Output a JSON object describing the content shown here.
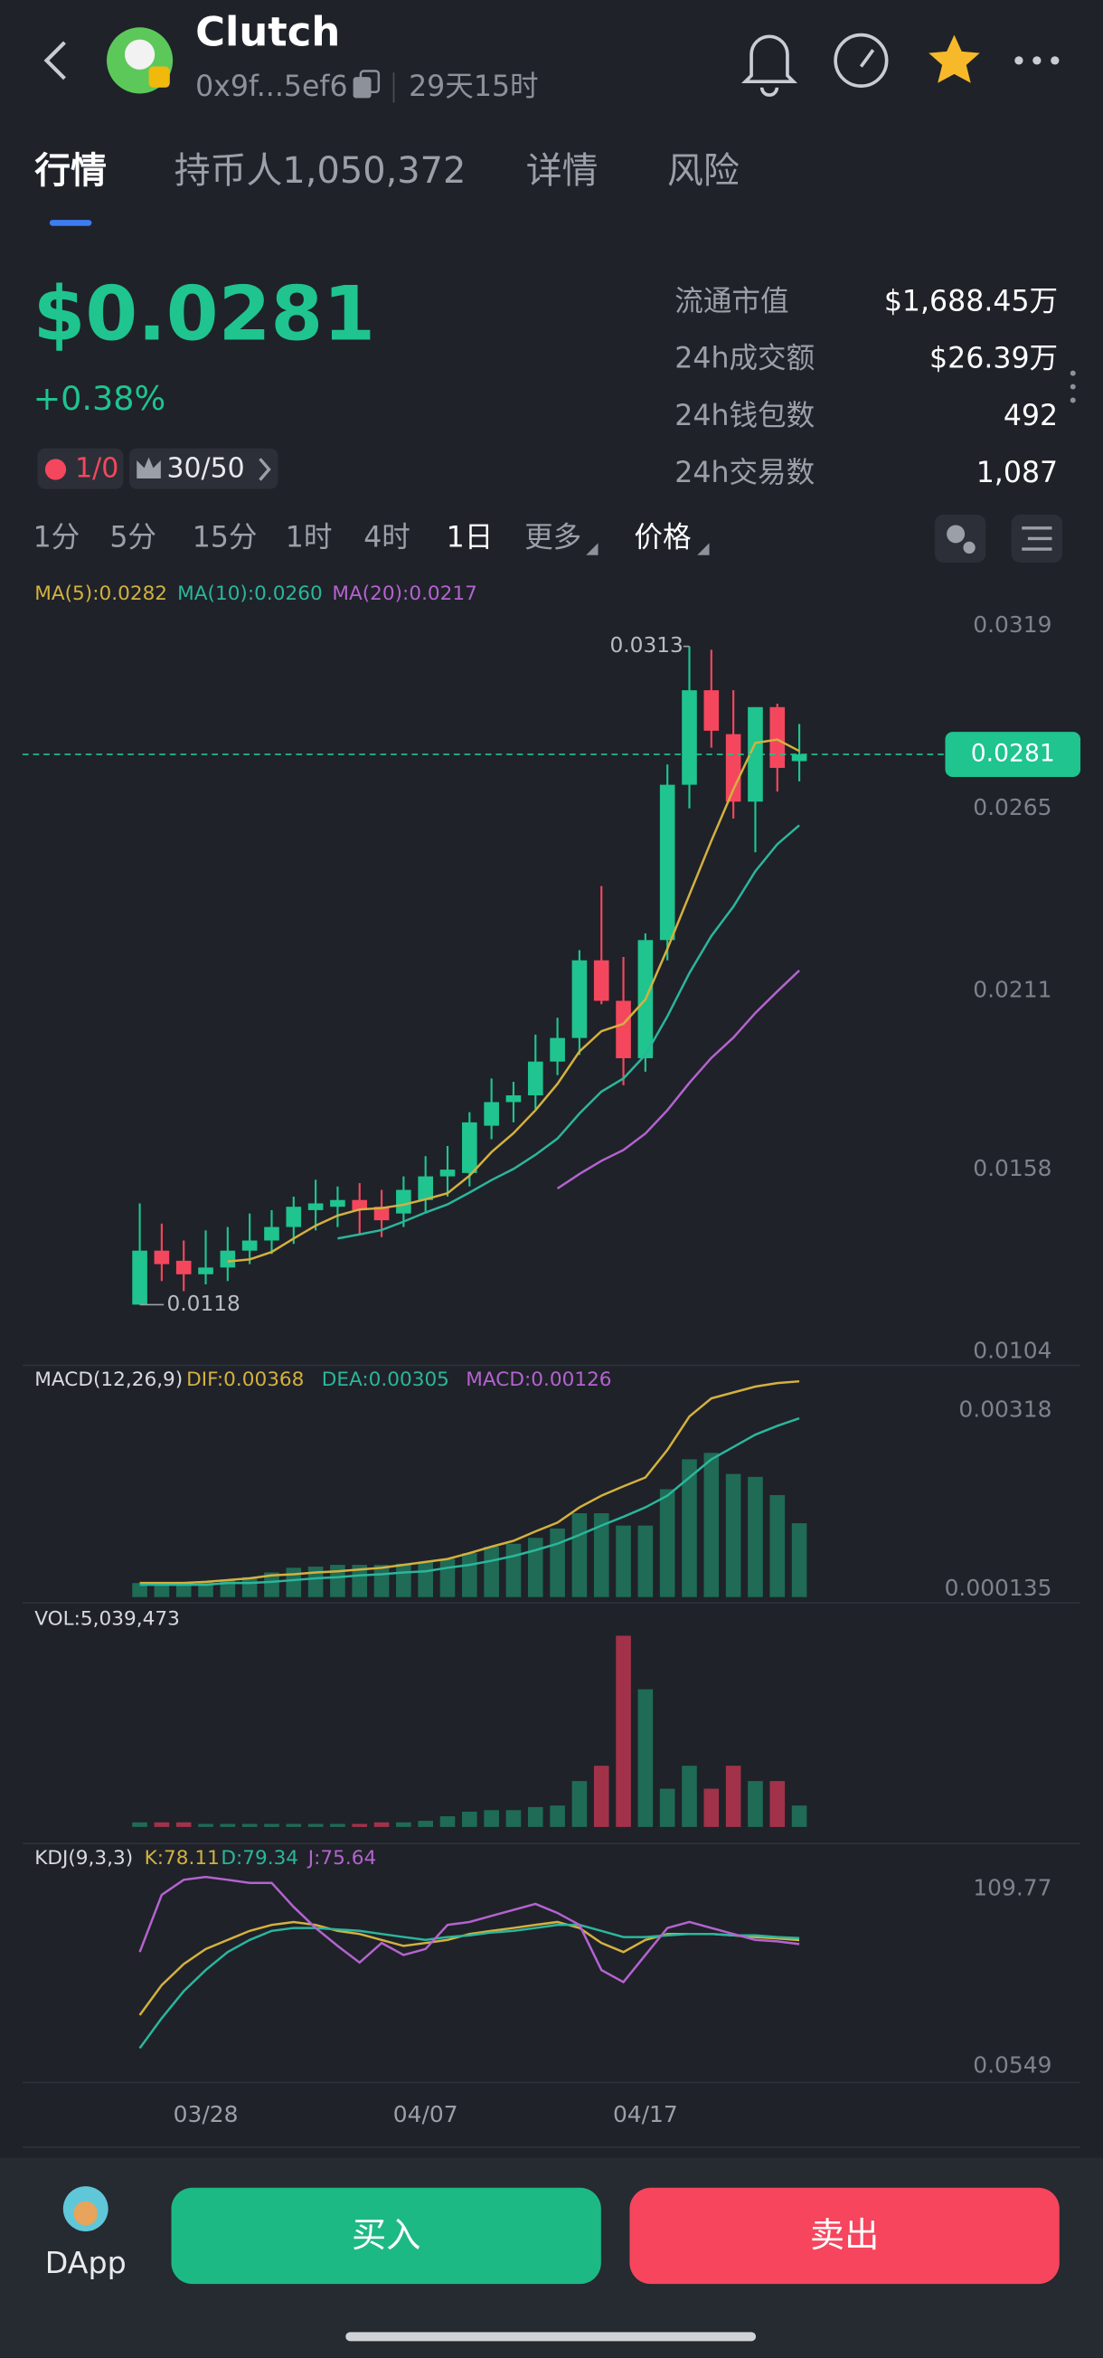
{
  "header": {
    "title": "Clutch",
    "address": "0x9f...5ef6",
    "age": "29天15时"
  },
  "tabs": [
    "行情",
    "持币人1,050,372",
    "详情",
    "风险"
  ],
  "price": {
    "value": "$0.0281",
    "change": "+0.38%"
  },
  "badges": [
    "1/0",
    "30/50"
  ],
  "stats": [
    {
      "label": "流通市值",
      "value": "$1,688.45万"
    },
    {
      "label": "24h成交额",
      "value": "$26.39万"
    },
    {
      "label": "24h钱包数",
      "value": "492"
    },
    {
      "label": "24h交易数",
      "value": "1,087"
    }
  ],
  "intervals": [
    "1分",
    "5分",
    "15分",
    "1时",
    "4时",
    "1日",
    "更多",
    "价格"
  ],
  "chart_data": [
    {
      "type": "candlestick",
      "categories": [
        null,
        null,
        null,
        "03/28",
        null,
        null,
        null,
        null,
        null,
        null,
        null,
        null,
        null,
        "04/07",
        null,
        null,
        null,
        null,
        null,
        null,
        null,
        null,
        null,
        "04/17",
        null,
        null,
        null,
        null,
        null,
        null,
        null
      ],
      "open": [
        0.0118,
        0.0134,
        0.0131,
        0.0127,
        0.0129,
        0.0134,
        0.0137,
        0.0141,
        0.0146,
        0.0147,
        0.0149,
        0.0147,
        0.0145,
        0.0149,
        0.0156,
        0.0157,
        0.0171,
        0.0178,
        0.018,
        0.019,
        0.0197,
        0.022,
        0.0208,
        0.0191,
        0.0226,
        0.0272,
        0.03,
        0.0287,
        0.0267,
        0.0295,
        0.0279
      ],
      "high": [
        0.0148,
        0.0142,
        0.0137,
        0.014,
        0.0141,
        0.0145,
        0.0146,
        0.015,
        0.0155,
        0.0153,
        0.0154,
        0.0152,
        0.0156,
        0.0162,
        0.0165,
        0.0175,
        0.0185,
        0.0184,
        0.0198,
        0.0203,
        0.0223,
        0.0242,
        0.0221,
        0.0228,
        0.0278,
        0.0313,
        0.0312,
        0.03,
        0.0294,
        0.0296,
        0.029
      ],
      "low": [
        0.0118,
        0.0125,
        0.0122,
        0.0124,
        0.0125,
        0.013,
        0.0133,
        0.0136,
        0.014,
        0.0141,
        0.0139,
        0.0138,
        0.0141,
        0.0145,
        0.015,
        0.0153,
        0.0167,
        0.0172,
        0.0176,
        0.0186,
        0.0192,
        0.0207,
        0.0183,
        0.0187,
        0.022,
        0.0265,
        0.0283,
        0.0262,
        0.0252,
        0.027,
        0.0273
      ],
      "close": [
        0.0134,
        0.013,
        0.0127,
        0.0129,
        0.0134,
        0.0137,
        0.0141,
        0.0147,
        0.0148,
        0.0149,
        0.0146,
        0.0143,
        0.0152,
        0.0156,
        0.0158,
        0.0172,
        0.0178,
        0.018,
        0.019,
        0.0197,
        0.022,
        0.0208,
        0.0191,
        0.0226,
        0.0272,
        0.03,
        0.0288,
        0.0267,
        0.0295,
        0.0277,
        0.0281
      ],
      "up_color": "#1fc48f",
      "down_color": "#f4475d",
      "ylim": [
        0.01,
        0.0324
      ],
      "yticks": [
        0.0319,
        0.0265,
        0.0211,
        0.0158,
        0.0104
      ],
      "series": [
        {
          "name": "MA(5):0.0282",
          "color": "#d4b13f",
          "values": [
            null,
            null,
            null,
            null,
            0.01308,
            0.01314,
            0.01336,
            0.01376,
            0.01414,
            0.01444,
            0.01462,
            0.01466,
            0.01476,
            0.01492,
            0.0151,
            0.01562,
            0.01632,
            0.01688,
            0.01756,
            0.01834,
            0.0193,
            0.0199,
            0.02012,
            0.02084,
            0.02234,
            0.02394,
            0.02554,
            0.02706,
            0.02844,
            0.02854,
            0.0282
          ]
        },
        {
          "name": "MA(10):0.0260",
          "color": "#2bb69c",
          "values": [
            null,
            null,
            null,
            null,
            null,
            null,
            null,
            null,
            null,
            0.01376,
            0.01388,
            0.01401,
            0.01426,
            0.01453,
            0.01477,
            0.01512,
            0.01549,
            0.01582,
            0.01624,
            0.01672,
            0.01746,
            0.01811,
            0.0185,
            0.0192,
            0.02034,
            0.02162,
            0.02272,
            0.02359,
            0.02464,
            0.02544,
            0.026
          ]
        },
        {
          "name": "MA(20):0.0217",
          "color": "#b463cf",
          "values": [
            null,
            null,
            null,
            null,
            null,
            null,
            null,
            null,
            null,
            null,
            null,
            null,
            null,
            null,
            null,
            null,
            null,
            null,
            null,
            0.01524,
            0.01567,
            0.01606,
            0.01638,
            0.01687,
            0.01756,
            0.01837,
            0.01911,
            0.01971,
            0.02044,
            0.02108,
            0.0217
          ]
        }
      ]
    },
    {
      "type": "macd",
      "title": "MACD(12,26,9)",
      "ylim": [
        -0.0001,
        0.0039
      ],
      "yticks": [
        0.00318,
        0.000135
      ],
      "series": [
        {
          "name": "DIF:0.00368",
          "color": "#d4b13f",
          "values": [
            0.00024,
            0.00024,
            0.00024,
            0.00026,
            0.00029,
            0.00032,
            0.00037,
            0.00039,
            0.00042,
            0.00044,
            0.00047,
            0.0005,
            0.00055,
            0.0006,
            0.00065,
            0.00075,
            0.00086,
            0.00096,
            0.00112,
            0.00127,
            0.00153,
            0.00173,
            0.00189,
            0.00204,
            0.00251,
            0.00308,
            0.00339,
            0.00349,
            0.00359,
            0.00365,
            0.00368
          ]
        },
        {
          "name": "DEA:0.00305",
          "color": "#2bb69c",
          "values": [
            0.00021,
            0.00021,
            0.00021,
            0.00021,
            0.00024,
            0.00024,
            0.00026,
            0.00029,
            0.00032,
            0.00034,
            0.00037,
            0.00039,
            0.00042,
            0.00044,
            0.0005,
            0.00055,
            0.00062,
            0.0007,
            0.0008,
            0.00091,
            0.00106,
            0.00122,
            0.00137,
            0.00153,
            0.00173,
            0.00204,
            0.00235,
            0.00256,
            0.00277,
            0.00292,
            0.00305
          ]
        },
        {
          "name": "MACD:0.00126",
          "color": "#b463cf",
          "bar_color": "#1f6b55",
          "values": [
            0.00024,
            0.00024,
            0.00026,
            0.00026,
            0.0003,
            0.00034,
            0.00042,
            0.0005,
            0.00052,
            0.00055,
            0.00055,
            0.00055,
            0.00057,
            0.0006,
            0.00065,
            0.00075,
            0.00086,
            0.00091,
            0.00101,
            0.00117,
            0.00143,
            0.00143,
            0.00122,
            0.00122,
            0.00184,
            0.00235,
            0.00246,
            0.0021,
            0.00205,
            0.00174,
            0.00126
          ]
        }
      ]
    },
    {
      "type": "bar",
      "title": "VOL:5,039,473",
      "up_color": "#1f6b55",
      "down_color": "#a2324a",
      "ylim": [
        0,
        52000000
      ],
      "values": [
        1080000,
        1080000,
        1080000,
        720000,
        720000,
        720000,
        720000,
        720000,
        720000,
        720000,
        720000,
        1080000,
        1080000,
        1440000,
        2520000,
        3600000,
        3960000,
        3960000,
        4680000,
        5040000,
        10800000,
        14400000,
        45000000,
        32400000,
        9000000,
        14400000,
        9000000,
        14400000,
        10800000,
        10800000,
        5039473
      ]
    },
    {
      "type": "kdj",
      "title": "KDJ(9,3,3)",
      "ylim": [
        -10,
        136
      ],
      "yticks": [
        109.77,
        0.0549
      ],
      "series": [
        {
          "name": "K:78.11",
          "color": "#d4b13f",
          "values": [
            31.7,
            50.3,
            63.3,
            72.6,
            78.2,
            83.8,
            87.5,
            89.3,
            87.5,
            83.8,
            81.9,
            78.2,
            74.5,
            76.3,
            78.2,
            81.9,
            83.8,
            85.6,
            87.5,
            89.3,
            85.6,
            76.3,
            70.7,
            78.2,
            81.9,
            81.9,
            81.9,
            81.0,
            80.0,
            79.1,
            78.11
          ]
        },
        {
          "name": "D:79.34",
          "color": "#2bb69c",
          "values": [
            11.2,
            29.8,
            46.5,
            59.6,
            70.7,
            78.2,
            83.8,
            85.6,
            85.6,
            84.7,
            83.8,
            81.9,
            80.0,
            78.2,
            80.0,
            81.0,
            82.8,
            83.8,
            85.6,
            87.5,
            87.5,
            83.8,
            80.0,
            80.0,
            81.0,
            81.9,
            81.9,
            81.0,
            81.0,
            80.0,
            79.34
          ]
        },
        {
          "name": "J:75.64",
          "color": "#b463cf",
          "values": [
            70.7,
            106.1,
            115.4,
            117.2,
            115.4,
            113.5,
            113.5,
            98.6,
            85.6,
            74.5,
            64.2,
            76.3,
            68.9,
            72.6,
            87.5,
            89.3,
            93.1,
            96.8,
            100.5,
            94.9,
            87.5,
            59.6,
            52.1,
            68.9,
            85.6,
            89.3,
            85.6,
            81.9,
            78.2,
            77.3,
            75.64
          ]
        }
      ]
    }
  ],
  "actions": {
    "dapp": "DApp",
    "buy": "买入",
    "sell": "卖出"
  }
}
